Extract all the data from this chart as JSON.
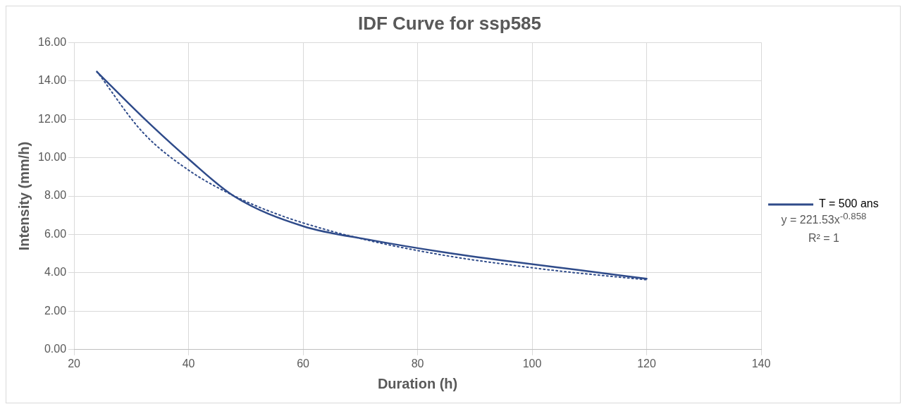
{
  "chart_data": {
    "type": "line",
    "title": "IDF Curve for ssp585",
    "xlabel": "Duration (h)",
    "ylabel": "Intensity (mm/h)",
    "series": [
      {
        "name": "T = 500 ans",
        "color": "#2f4b8a",
        "x": [
          24,
          32,
          40,
          48,
          60,
          72,
          84,
          96,
          108,
          120
        ],
        "values": [
          14.47,
          12.11,
          9.93,
          7.98,
          6.43,
          5.7,
          5.1,
          4.6,
          4.15,
          3.69
        ],
        "line_style": "solid"
      },
      {
        "type": "line",
        "color": "#2f4b8a",
        "x": [
          24,
          32,
          40,
          48,
          56,
          64,
          72,
          80,
          88,
          96,
          104,
          112,
          120
        ],
        "values": [
          14.49,
          11.32,
          9.35,
          8.0,
          7.0,
          6.25,
          5.65,
          5.16,
          4.75,
          4.42,
          4.12,
          3.87,
          3.64
        ],
        "line_style": "dotted"
      }
    ],
    "xlim": [
      20,
      140
    ],
    "xticks": [
      20,
      40,
      60,
      80,
      100,
      120,
      140
    ],
    "ylim": [
      0,
      16
    ],
    "yticks": [
      {
        "value": 0,
        "label": "0.00"
      },
      {
        "value": 2,
        "label": "2.00"
      },
      {
        "value": 4,
        "label": "4.00"
      },
      {
        "value": 6,
        "label": "6.00"
      },
      {
        "value": 8,
        "label": "8.00"
      },
      {
        "value": 10,
        "label": "10.00"
      },
      {
        "value": 12,
        "label": "12.00"
      },
      {
        "value": 14,
        "label": "14.00"
      },
      {
        "value": 16,
        "label": "16.00"
      }
    ],
    "grid": true,
    "legend": "right",
    "marker": "none",
    "annotations": [
      "y = 221.53x$^{-0.858}$",
      "R² = 1"
    ]
  }
}
